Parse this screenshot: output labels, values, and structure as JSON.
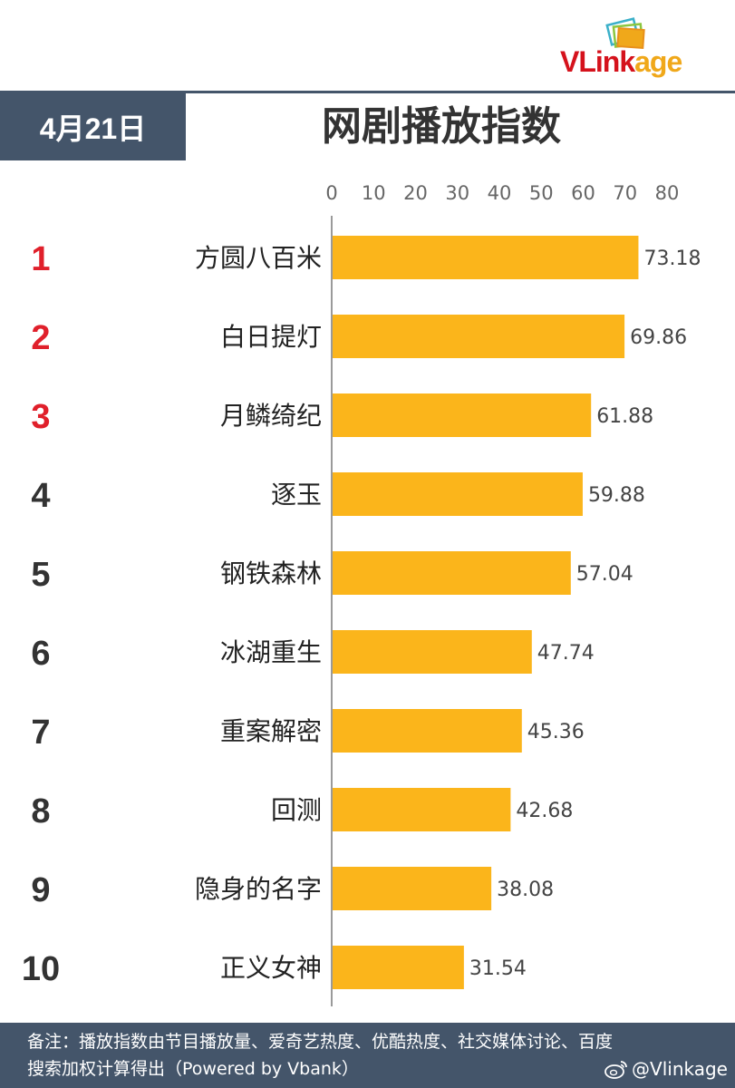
{
  "logo": {
    "prefix": "VLink",
    "suffix": "age"
  },
  "header": {
    "date": "4月21日",
    "title": "网剧播放指数"
  },
  "chart_data": {
    "type": "bar",
    "orientation": "horizontal",
    "title": "网剧播放指数",
    "xlim": [
      0,
      80
    ],
    "xticks": [
      0,
      10,
      20,
      30,
      40,
      50,
      60,
      70,
      80
    ],
    "ranks": [
      "1",
      "2",
      "3",
      "4",
      "5",
      "6",
      "7",
      "8",
      "9",
      "10"
    ],
    "categories": [
      "方圆八百米",
      "白日提灯",
      "月鳞绮纪",
      "逐玉",
      "钢铁森林",
      "冰湖重生",
      "重案解密",
      "回测",
      "隐身的名字",
      "正义女神"
    ],
    "values": [
      73.18,
      69.86,
      61.88,
      59.88,
      57.04,
      47.74,
      45.36,
      42.68,
      38.08,
      31.54
    ],
    "value_labels": [
      "73.18",
      "69.86",
      "61.88",
      "59.88",
      "57.04",
      "47.74",
      "45.36",
      "42.68",
      "38.08",
      "31.54"
    ],
    "bar_color": "#fbb51b",
    "top_rank_color": "#e0202b",
    "rank_color": "#333333"
  },
  "footer": {
    "note": "备注：播放指数由节目播放量、爱奇艺热度、优酷热度、社交媒体讨论、百度搜索加权计算得出（Powered by Vbank）",
    "social_handle": "@Vlinkage",
    "social_icon": "weibo-icon"
  }
}
